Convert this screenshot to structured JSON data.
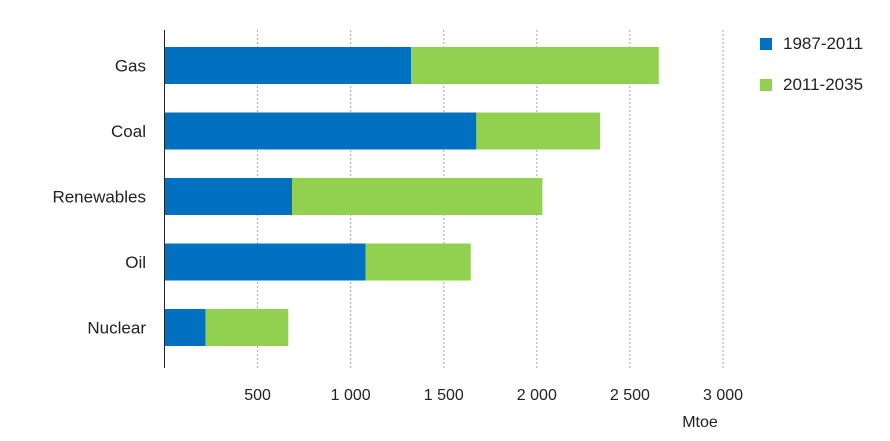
{
  "chart_data": {
    "type": "bar",
    "orientation": "horizontal",
    "stacked": true,
    "categories": [
      "Gas",
      "Coal",
      "Renewables",
      "Oil",
      "Nuclear"
    ],
    "series": [
      {
        "name": "1987-2011",
        "color": "#0070c0",
        "values": [
          1325,
          1675,
          685,
          1080,
          220
        ]
      },
      {
        "name": "2011-2035",
        "color": "#92d050",
        "values": [
          1330,
          665,
          1345,
          565,
          445
        ]
      }
    ],
    "x_ticks": [
      500,
      1000,
      1500,
      2000,
      2500,
      3000
    ],
    "x_tick_labels": [
      "500",
      "1 000",
      "1 500",
      "2 000",
      "2 500",
      "3 000"
    ],
    "xlim": [
      0,
      3000
    ],
    "xlabel": "Mtoe",
    "grid": "vertical dashed",
    "legend_position": "top-right"
  }
}
